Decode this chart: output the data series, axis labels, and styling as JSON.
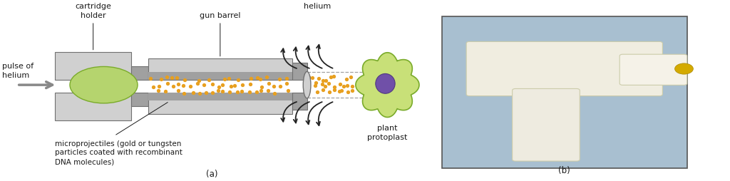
{
  "bg_color": "#ffffff",
  "text_color": "#1a1a1a",
  "label_fontsize": 8.0,
  "diagram_label_a": "(a)",
  "diagram_label_b": "(b)",
  "gun_gray_light": "#d0d0d0",
  "gun_gray_mid": "#a0a0a0",
  "gun_gray_dark": "#707070",
  "green_light": "#b5d46e",
  "green_mid": "#7aab2a",
  "gold_dot": "#e8a020",
  "cell_outer_edge": "#7aab2a",
  "cell_inner_fill": "#c8e078",
  "nucleus_color": "#7050a8",
  "nucleus_edge": "#503880",
  "dashed_line_color": "#a0a0a0",
  "arrow_color": "#222222",
  "helium_arrow_color": "#888888",
  "helium_label": "helium",
  "pulse_label": "pulse of\nhelium",
  "cartridge_label": "cartridge\nholder",
  "barrel_label": "gun barrel",
  "micro_label": "microprojectiles (gold or tungsten\nparticles coated with recombinant\nDNA molecules)",
  "plant_label": "plant\nprotoplast",
  "photo_bg": "#a8bfd0",
  "photo_edge": "#555555"
}
